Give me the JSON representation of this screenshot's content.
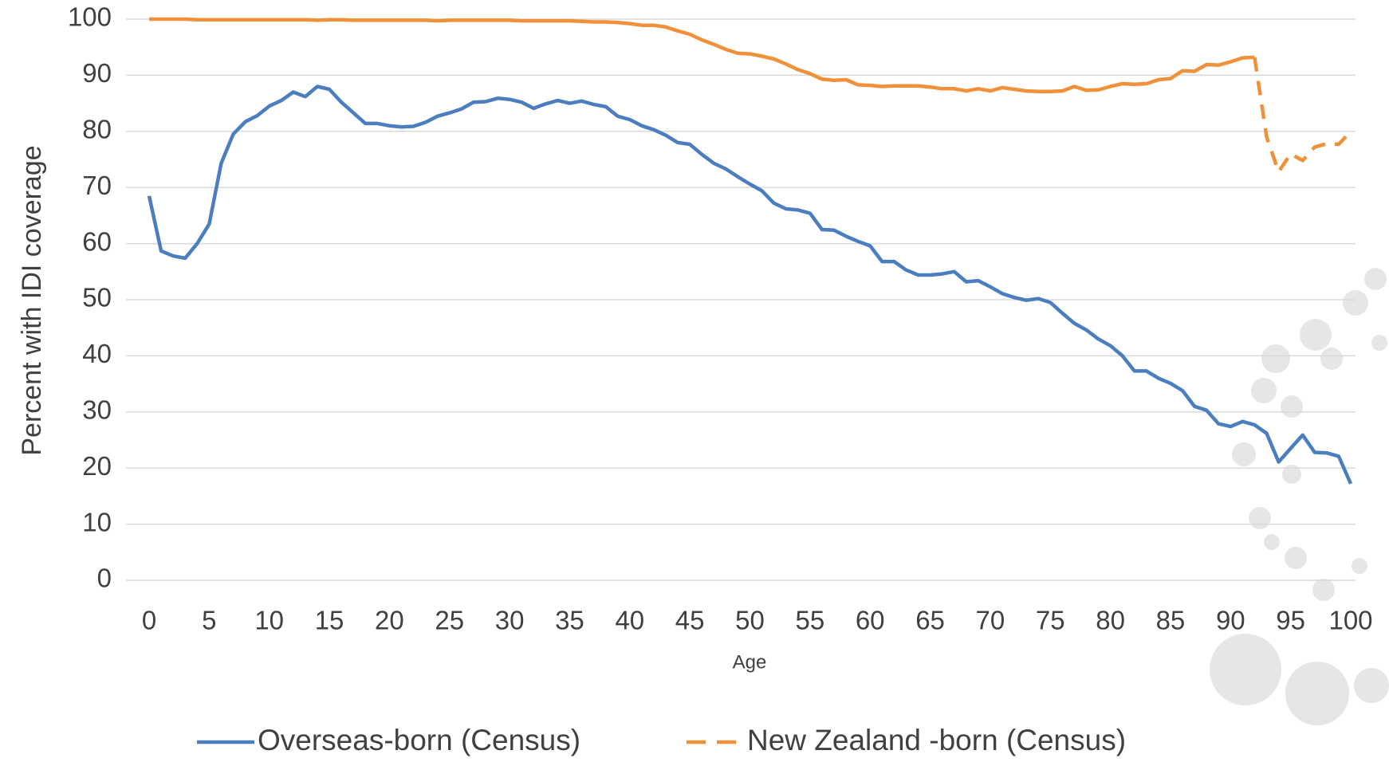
{
  "chart_data": {
    "type": "line",
    "x_label": "Age",
    "y_label": "Percent with IDI coverage",
    "x": [
      0,
      1,
      2,
      3,
      4,
      5,
      6,
      7,
      8,
      9,
      10,
      11,
      12,
      13,
      14,
      15,
      16,
      17,
      18,
      19,
      20,
      21,
      22,
      23,
      24,
      25,
      26,
      27,
      28,
      29,
      30,
      31,
      32,
      33,
      34,
      35,
      36,
      37,
      38,
      39,
      40,
      41,
      42,
      43,
      44,
      45,
      46,
      47,
      48,
      49,
      50,
      51,
      52,
      53,
      54,
      55,
      56,
      57,
      58,
      59,
      60,
      61,
      62,
      63,
      64,
      65,
      66,
      67,
      68,
      69,
      70,
      71,
      72,
      73,
      74,
      75,
      76,
      77,
      78,
      79,
      80,
      81,
      82,
      83,
      84,
      85,
      86,
      87,
      88,
      89,
      90,
      91,
      92,
      93,
      94,
      95,
      96,
      97,
      98,
      99,
      100
    ],
    "xlim": [
      0,
      100
    ],
    "xticks": [
      0,
      5,
      10,
      15,
      20,
      25,
      30,
      35,
      40,
      45,
      50,
      55,
      60,
      65,
      70,
      75,
      80,
      85,
      90,
      95,
      100
    ],
    "ylim": [
      0,
      100
    ],
    "yticks": [
      0,
      10,
      20,
      30,
      40,
      50,
      60,
      70,
      80,
      90,
      100
    ],
    "grid": true,
    "legend": "bottom",
    "series": [
      {
        "name": "Overseas-born (Census)",
        "color": "#4a7ebf",
        "line_style": "solid",
        "values": [
          68.5,
          58.7,
          57.8,
          57.4,
          60,
          63.5,
          74.3,
          79.5,
          81.7,
          82.8,
          84.5,
          85.5,
          87,
          86.2,
          88,
          87.5,
          85.2,
          83.3,
          81.4,
          81.4,
          81,
          80.8,
          80.9,
          81.6,
          82.7,
          83.3,
          84,
          85.2,
          85.3,
          85.9,
          85.7,
          85.2,
          84.1,
          84.9,
          85.5,
          85,
          85.4,
          84.8,
          84.4,
          82.7,
          82.1,
          81,
          80.3,
          79.3,
          78,
          77.7,
          75.9,
          74.3,
          73.3,
          71.9,
          70.6,
          69.4,
          67.2,
          66.2,
          66,
          65.4,
          62.5,
          62.4,
          61.3,
          60.4,
          59.6,
          56.8,
          56.8,
          55.3,
          54.4,
          54.4,
          54.6,
          55,
          53.2,
          53.4,
          52.3,
          51.1,
          50.4,
          49.9,
          50.2,
          49.5,
          47.6,
          45.8,
          44.6,
          43,
          41.8,
          40,
          37.3,
          37.3,
          36,
          35.1,
          33.8,
          31,
          30.3,
          27.9,
          27.4,
          28.3,
          27.7,
          26.2,
          21.1,
          23.5,
          25.9,
          22.8,
          22.7,
          22.1,
          17.2
        ]
      },
      {
        "name": "New Zealand -born (Census)",
        "color": "#f0913a",
        "line_style": "dashed",
        "dash_starts_at": 92,
        "values": [
          100,
          100,
          100,
          100,
          99.9,
          99.9,
          99.9,
          99.9,
          99.9,
          99.9,
          99.9,
          99.9,
          99.9,
          99.9,
          99.8,
          99.9,
          99.9,
          99.8,
          99.8,
          99.8,
          99.8,
          99.8,
          99.8,
          99.8,
          99.7,
          99.8,
          99.8,
          99.8,
          99.8,
          99.8,
          99.8,
          99.7,
          99.7,
          99.7,
          99.7,
          99.7,
          99.6,
          99.5,
          99.5,
          99.4,
          99.2,
          98.9,
          98.9,
          98.6,
          97.9,
          97.3,
          96.3,
          95.5,
          94.6,
          93.9,
          93.8,
          93.4,
          92.9,
          92,
          91,
          90.3,
          89.3,
          89.1,
          89.2,
          88.3,
          88.2,
          88,
          88.1,
          88.1,
          88.1,
          87.9,
          87.6,
          87.6,
          87.2,
          87.6,
          87.2,
          87.8,
          87.5,
          87.2,
          87.1,
          87.1,
          87.2,
          88,
          87.3,
          87.4,
          88,
          88.5,
          88.4,
          88.5,
          89.2,
          89.4,
          90.8,
          90.7,
          91.9,
          91.8,
          92.4,
          93.1,
          93.2,
          79,
          72.8,
          76,
          74.8,
          77.2,
          77.8,
          77.7,
          80
        ]
      }
    ]
  }
}
